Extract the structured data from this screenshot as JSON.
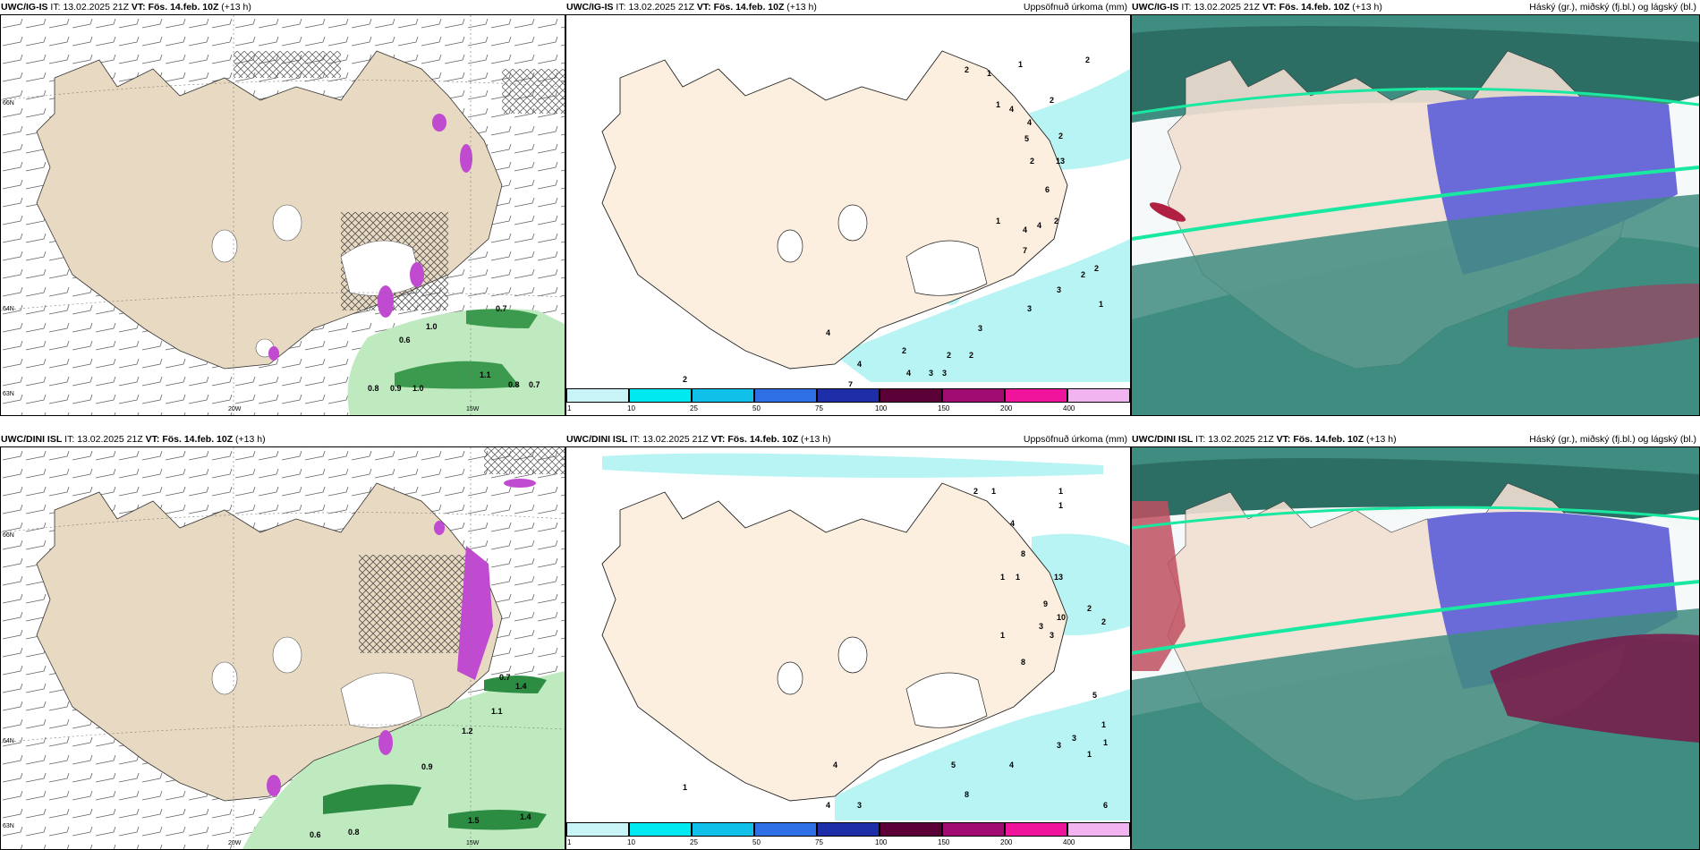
{
  "panels": [
    {
      "model": "UWC/IG-IS",
      "it_label": "IT:",
      "it": "13.02.2025 21Z",
      "vt_label": "VT:",
      "vt": "Fös. 14.feb. 10Z",
      "lead": "(+13 h)",
      "right": ""
    },
    {
      "model": "UWC/IG-IS",
      "it_label": "IT:",
      "it": "13.02.2025 21Z",
      "vt_label": "VT:",
      "vt": "Fös. 14.feb. 10Z",
      "lead": "(+13 h)",
      "right": "Uppsöfnuð úrkoma (mm)"
    },
    {
      "model": "UWC/IG-IS",
      "it_label": "IT:",
      "it": "13.02.2025 21Z",
      "vt_label": "VT:",
      "vt": "Fös. 14.feb. 10Z",
      "lead": "(+13 h)",
      "right": "Háský (gr.), miðský (fj.bl.) og lágský (bl.)"
    },
    {
      "model": "UWC/DINI ISL",
      "it_label": "IT:",
      "it": "13.02.2025 21Z",
      "vt_label": "VT:",
      "vt": "Fös. 14.feb. 10Z",
      "lead": "(+13 h)",
      "right": ""
    },
    {
      "model": "UWC/DINI ISL",
      "it_label": "IT:",
      "it": "13.02.2025 21Z",
      "vt_label": "VT:",
      "vt": "Fös. 14.feb. 10Z",
      "lead": "(+13 h)",
      "right": "Uppsöfnuð úrkoma (mm)"
    },
    {
      "model": "UWC/DINI ISL",
      "it_label": "IT:",
      "it": "13.02.2025 21Z",
      "vt_label": "VT:",
      "vt": "Fös. 14.feb. 10Z",
      "lead": "(+13 h)",
      "right": "Háský (gr.), miðský (fj.bl.) og lágský (bl.)"
    }
  ],
  "axis_ticks": {
    "lat_66": "66N",
    "lat_64": "64N",
    "lat_63": "63N",
    "lon_20": "20W",
    "lon_15": "15W"
  },
  "wind_top_values": [
    "0.7",
    "1.0",
    "0.6",
    "1.1",
    "0.8",
    "0.9",
    "1.0",
    "0.8",
    "0.7"
  ],
  "wind_bottom_values": [
    "0.7",
    "1.4",
    "1.1",
    "1.2",
    "0.9",
    "0.6",
    "0.8",
    "1.5",
    "1.4"
  ],
  "precip_top_values": [
    "2",
    "1",
    "1",
    "2",
    "1",
    "4",
    "2",
    "4",
    "5",
    "2",
    "2",
    "13",
    "6",
    "1",
    "4",
    "4",
    "2",
    "7",
    "2",
    "2",
    "3",
    "3",
    "3",
    "1",
    "2",
    "2",
    "3",
    "4",
    "2",
    "3",
    "4",
    "2",
    "7",
    "4"
  ],
  "precip_bottom_values": [
    "2",
    "1",
    "1",
    "1",
    "4",
    "8",
    "1",
    "1",
    "13",
    "9",
    "10",
    "2",
    "3",
    "3",
    "1",
    "8",
    "2",
    "1",
    "5",
    "3",
    "3",
    "1",
    "1",
    "5",
    "4",
    "8",
    "6",
    "4",
    "4",
    "3",
    "1"
  ],
  "legend": {
    "levels": [
      "1",
      "10",
      "25",
      "50",
      "75",
      "100",
      "150",
      "200",
      "400"
    ],
    "colors": [
      "#c8f4f8",
      "#00e8f0",
      "#10c0e8",
      "#2f6fe6",
      "#1e2ea8",
      "#5a0036",
      "#a00c72",
      "#f0149c",
      "#f2b4f0"
    ]
  },
  "colors": {
    "land": "#e8d9c2",
    "land_precip": "#fcefdf",
    "precip": "#b8f4f4",
    "cloud_base": "#3f8c80",
    "cloud_high": "#6a6ad8",
    "cloud_low": "#5a2a50"
  }
}
